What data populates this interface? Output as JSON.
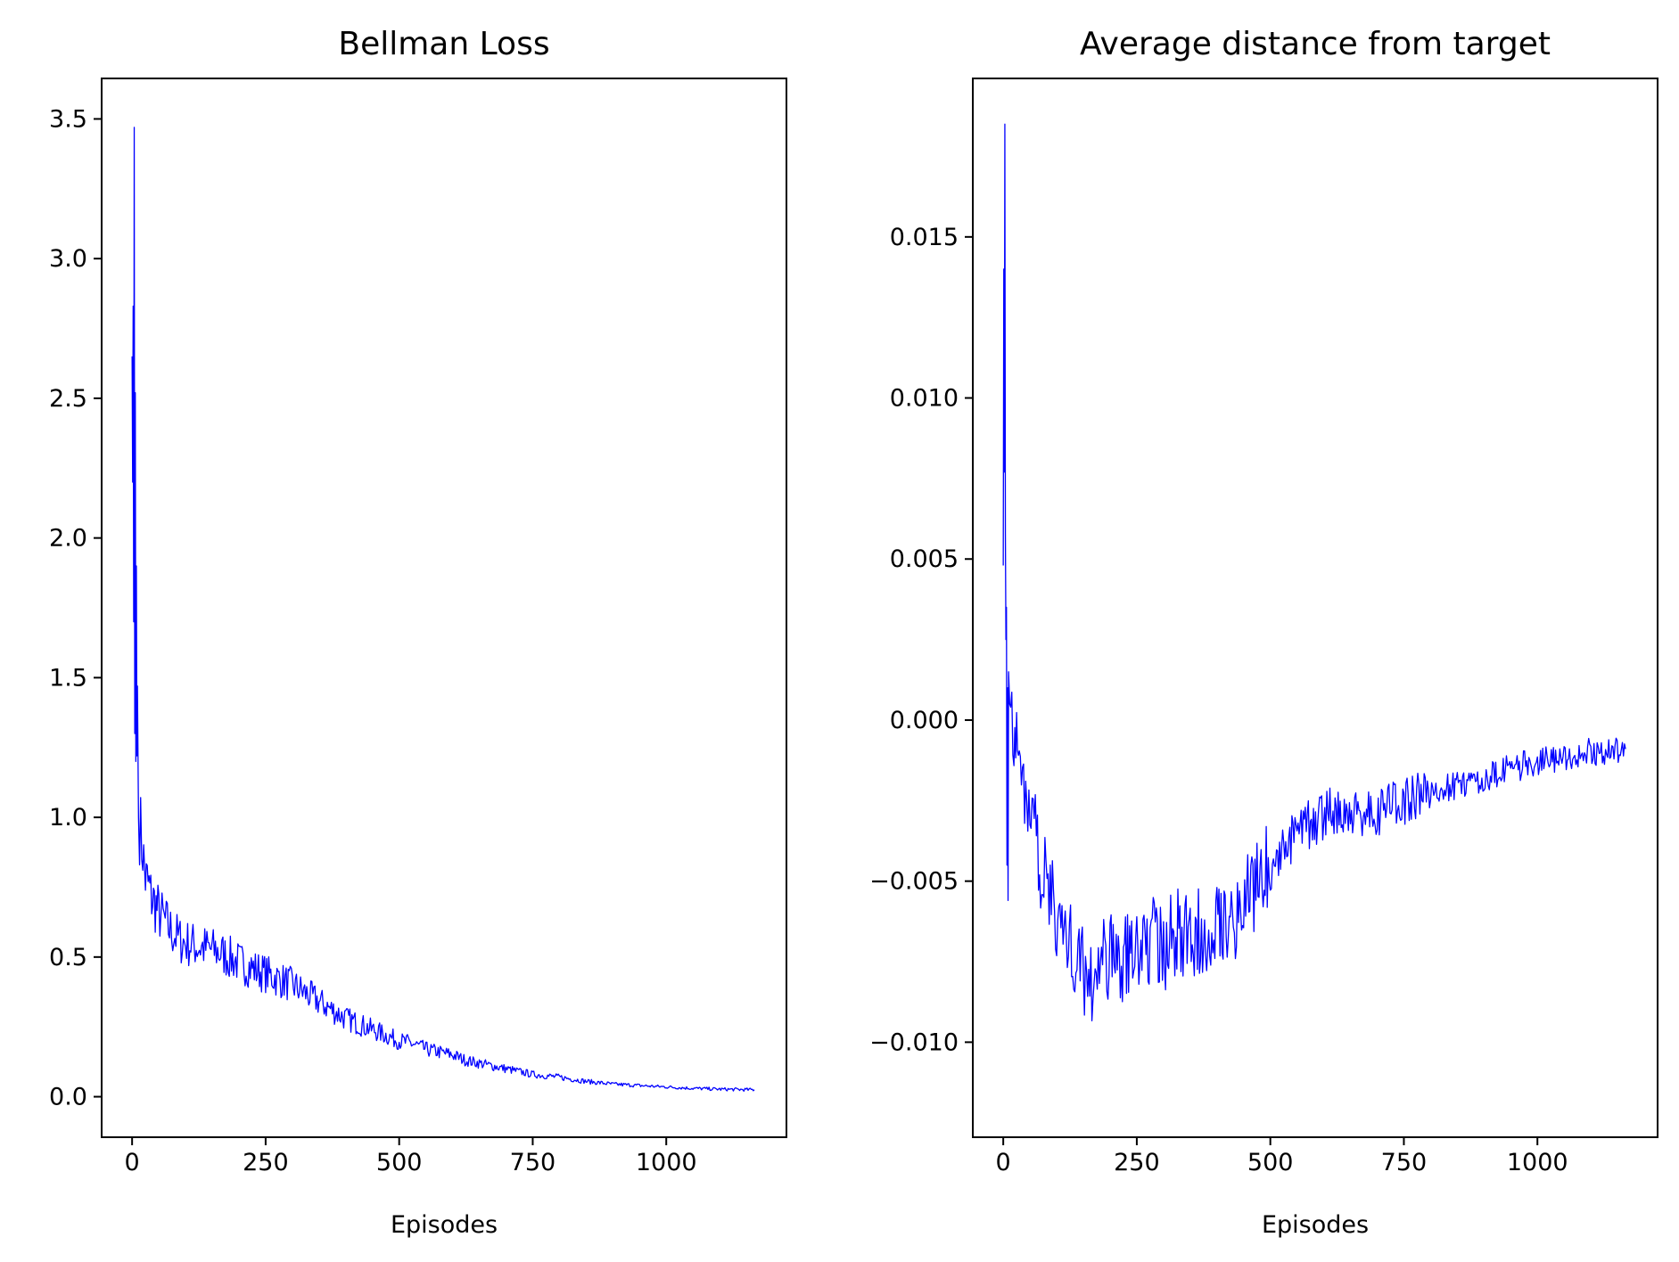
{
  "chart_data": [
    {
      "type": "line",
      "title": "Bellman Loss",
      "xlabel": "Episodes",
      "ylabel": "",
      "xlim": [
        -57,
        1225
      ],
      "ylim": [
        -0.145,
        3.645
      ],
      "grid": false,
      "legend": "none",
      "series_color": "#0000ff",
      "xticks": [
        0,
        250,
        500,
        750,
        1000
      ],
      "xtick_labels": [
        "0",
        "250",
        "500",
        "750",
        "1000"
      ],
      "yticks": [
        0.0,
        0.5,
        1.0,
        1.5,
        2.0,
        2.5,
        3.0,
        3.5
      ],
      "ytick_labels": [
        "0.0",
        "0.5",
        "1.0",
        "1.5",
        "2.0",
        "2.5",
        "3.0",
        "3.5"
      ],
      "series": [
        {
          "x": [
            0,
            1,
            2,
            3,
            4,
            5,
            6,
            7,
            8,
            9,
            10,
            12,
            14,
            16,
            18,
            20,
            25,
            30,
            35,
            40,
            45,
            50,
            60,
            70,
            80,
            90,
            100,
            120,
            140,
            160,
            180,
            200,
            225,
            250,
            275,
            300,
            325,
            350,
            375,
            400,
            425,
            450,
            475,
            500,
            525,
            550,
            575,
            600,
            625,
            650,
            675,
            700,
            750,
            800,
            850,
            900,
            950,
            1000,
            1050,
            1100,
            1165
          ],
          "y": [
            2.65,
            2.2,
            2.83,
            1.7,
            3.47,
            1.3,
            2.52,
            1.2,
            1.9,
            1.22,
            1.47,
            1.0,
            0.95,
            0.97,
            0.9,
            0.88,
            0.78,
            0.76,
            0.72,
            0.7,
            0.68,
            0.66,
            0.63,
            0.6,
            0.58,
            0.56,
            0.55,
            0.54,
            0.53,
            0.52,
            0.5,
            0.48,
            0.46,
            0.44,
            0.42,
            0.4,
            0.37,
            0.34,
            0.31,
            0.28,
            0.26,
            0.24,
            0.22,
            0.2,
            0.19,
            0.17,
            0.16,
            0.15,
            0.13,
            0.12,
            0.11,
            0.1,
            0.08,
            0.07,
            0.055,
            0.045,
            0.04,
            0.035,
            0.03,
            0.027,
            0.025
          ]
        }
      ]
    },
    {
      "type": "line",
      "title": "Average distance from target",
      "xlabel": "Episodes",
      "ylabel": "",
      "xlim": [
        -57,
        1225
      ],
      "ylim": [
        -0.01295,
        0.01992
      ],
      "grid": false,
      "legend": "none",
      "series_color": "#0000ff",
      "xticks": [
        0,
        250,
        500,
        750,
        1000
      ],
      "xtick_labels": [
        "0",
        "250",
        "500",
        "750",
        "1000"
      ],
      "yticks": [
        -0.01,
        -0.005,
        0.0,
        0.005,
        0.01,
        0.015
      ],
      "ytick_labels": [
        "−0.010",
        "−0.005",
        "0.000",
        "0.005",
        "0.010",
        "0.015"
      ],
      "series": [
        {
          "x": [
            0,
            1,
            2,
            3,
            4,
            5,
            6,
            7,
            8,
            9,
            10,
            12,
            14,
            16,
            18,
            20,
            25,
            30,
            40,
            50,
            60,
            70,
            80,
            100,
            120,
            140,
            160,
            180,
            200,
            225,
            250,
            275,
            300,
            325,
            350,
            375,
            400,
            425,
            450,
            475,
            500,
            525,
            550,
            575,
            600,
            625,
            650,
            700,
            750,
            800,
            850,
            900,
            950,
            1000,
            1050,
            1100,
            1165
          ],
          "y": [
            0.0048,
            0.014,
            0.0077,
            0.0185,
            0.0058,
            0.0025,
            0.0035,
            -0.0045,
            0.001,
            -0.0056,
            0.0015,
            0.0005,
            0.0018,
            0.0005,
            0.0,
            -0.0005,
            -0.001,
            -0.0015,
            -0.002,
            -0.0028,
            -0.0035,
            -0.0045,
            -0.005,
            -0.006,
            -0.0068,
            -0.0075,
            -0.008,
            -0.0078,
            -0.0072,
            -0.0075,
            -0.007,
            -0.0068,
            -0.0072,
            -0.0065,
            -0.0068,
            -0.0065,
            -0.006,
            -0.0062,
            -0.0058,
            -0.005,
            -0.0045,
            -0.004,
            -0.0035,
            -0.0032,
            -0.003,
            -0.0028,
            -0.003,
            -0.0028,
            -0.0025,
            -0.0022,
            -0.002,
            -0.0018,
            -0.0015,
            -0.0013,
            -0.0012,
            -0.001,
            -0.0009
          ]
        }
      ]
    }
  ]
}
